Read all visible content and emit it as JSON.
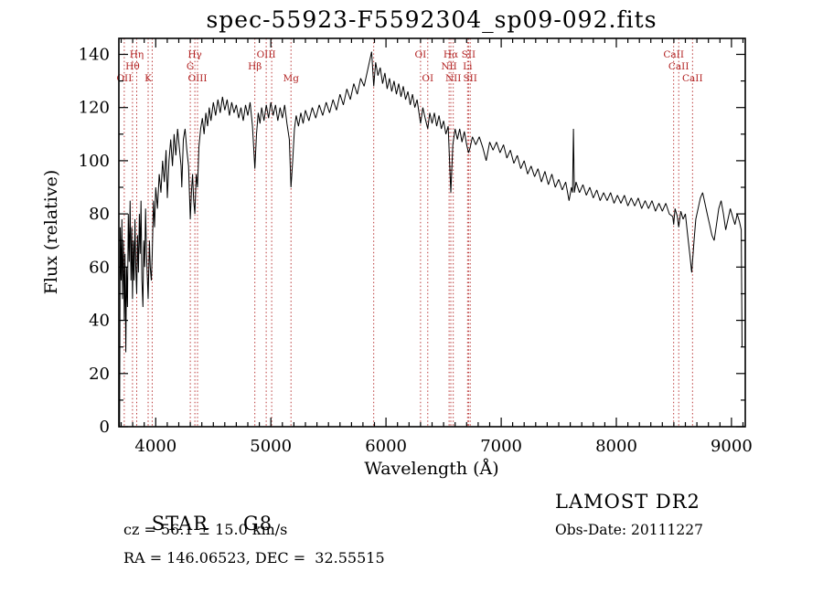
{
  "chart_data": {
    "type": "line",
    "title": "spec-55923-F5592304_sp09-092.fits",
    "xlabel": "Wavelength (Å)",
    "ylabel": "Flux (relative)",
    "xlim": [
      3680,
      9120
    ],
    "ylim": [
      0,
      146
    ],
    "xticks": [
      4000,
      5000,
      6000,
      7000,
      8000,
      9000
    ],
    "yticks": [
      0,
      20,
      40,
      60,
      80,
      100,
      120,
      140
    ],
    "x_minor_step": 100,
    "y_minor_step": 10,
    "grid": false,
    "axis_color": "#000000",
    "marker_color": "#b22222",
    "series": [
      {
        "name": "spectrum",
        "color": "#000000",
        "points": [
          [
            3686,
            0
          ],
          [
            3692,
            75
          ],
          [
            3700,
            55
          ],
          [
            3706,
            78
          ],
          [
            3712,
            48
          ],
          [
            3720,
            70
          ],
          [
            3727,
            40
          ],
          [
            3733,
            65
          ],
          [
            3740,
            28
          ],
          [
            3747,
            60
          ],
          [
            3755,
            45
          ],
          [
            3762,
            80
          ],
          [
            3770,
            62
          ],
          [
            3778,
            85
          ],
          [
            3785,
            55
          ],
          [
            3792,
            75
          ],
          [
            3798,
            48
          ],
          [
            3806,
            70
          ],
          [
            3812,
            55
          ],
          [
            3820,
            78
          ],
          [
            3827,
            60
          ],
          [
            3835,
            50
          ],
          [
            3842,
            72
          ],
          [
            3850,
            58
          ],
          [
            3858,
            80
          ],
          [
            3865,
            65
          ],
          [
            3872,
            85
          ],
          [
            3880,
            55
          ],
          [
            3889,
            45
          ],
          [
            3896,
            70
          ],
          [
            3904,
            60
          ],
          [
            3912,
            82
          ],
          [
            3920,
            65
          ],
          [
            3934,
            48
          ],
          [
            3945,
            70
          ],
          [
            3952,
            60
          ],
          [
            3962,
            55
          ],
          [
            3970,
            65
          ],
          [
            3980,
            85
          ],
          [
            3990,
            75
          ],
          [
            4000,
            90
          ],
          [
            4015,
            82
          ],
          [
            4030,
            95
          ],
          [
            4045,
            88
          ],
          [
            4060,
            100
          ],
          [
            4075,
            92
          ],
          [
            4090,
            104
          ],
          [
            4101,
            86
          ],
          [
            4115,
            100
          ],
          [
            4130,
            108
          ],
          [
            4145,
            98
          ],
          [
            4160,
            110
          ],
          [
            4175,
            102
          ],
          [
            4190,
            112
          ],
          [
            4205,
            105
          ],
          [
            4220,
            98
          ],
          [
            4226,
            90
          ],
          [
            4240,
            108
          ],
          [
            4255,
            112
          ],
          [
            4270,
            104
          ],
          [
            4285,
            98
          ],
          [
            4300,
            78
          ],
          [
            4310,
            88
          ],
          [
            4320,
            95
          ],
          [
            4330,
            85
          ],
          [
            4340,
            80
          ],
          [
            4352,
            95
          ],
          [
            4363,
            90
          ],
          [
            4375,
            105
          ],
          [
            4390,
            112
          ],
          [
            4405,
            116
          ],
          [
            4420,
            110
          ],
          [
            4435,
            118
          ],
          [
            4450,
            113
          ],
          [
            4465,
            120
          ],
          [
            4480,
            115
          ],
          [
            4500,
            122
          ],
          [
            4520,
            117
          ],
          [
            4540,
            123
          ],
          [
            4560,
            118
          ],
          [
            4580,
            124
          ],
          [
            4600,
            119
          ],
          [
            4620,
            123
          ],
          [
            4640,
            117
          ],
          [
            4660,
            122
          ],
          [
            4680,
            118
          ],
          [
            4700,
            121
          ],
          [
            4720,
            116
          ],
          [
            4740,
            120
          ],
          [
            4760,
            115
          ],
          [
            4780,
            121
          ],
          [
            4800,
            117
          ],
          [
            4820,
            122
          ],
          [
            4840,
            113
          ],
          [
            4861,
            97
          ],
          [
            4875,
            110
          ],
          [
            4890,
            118
          ],
          [
            4905,
            114
          ],
          [
            4920,
            120
          ],
          [
            4940,
            115
          ],
          [
            4960,
            121
          ],
          [
            4980,
            116
          ],
          [
            5000,
            122
          ],
          [
            5020,
            117
          ],
          [
            5040,
            121
          ],
          [
            5060,
            115
          ],
          [
            5080,
            120
          ],
          [
            5100,
            116
          ],
          [
            5120,
            121
          ],
          [
            5140,
            114
          ],
          [
            5160,
            108
          ],
          [
            5175,
            90
          ],
          [
            5190,
            100
          ],
          [
            5205,
            112
          ],
          [
            5220,
            117
          ],
          [
            5240,
            113
          ],
          [
            5260,
            118
          ],
          [
            5280,
            114
          ],
          [
            5300,
            119
          ],
          [
            5330,
            115
          ],
          [
            5360,
            120
          ],
          [
            5390,
            116
          ],
          [
            5420,
            121
          ],
          [
            5450,
            117
          ],
          [
            5480,
            122
          ],
          [
            5510,
            118
          ],
          [
            5540,
            123
          ],
          [
            5570,
            119
          ],
          [
            5600,
            125
          ],
          [
            5630,
            121
          ],
          [
            5660,
            127
          ],
          [
            5690,
            123
          ],
          [
            5720,
            129
          ],
          [
            5750,
            125
          ],
          [
            5780,
            131
          ],
          [
            5810,
            128
          ],
          [
            5840,
            134
          ],
          [
            5860,
            138
          ],
          [
            5875,
            141
          ],
          [
            5893,
            128
          ],
          [
            5910,
            137
          ],
          [
            5930,
            132
          ],
          [
            5950,
            135
          ],
          [
            5970,
            129
          ],
          [
            5990,
            133
          ],
          [
            6010,
            127
          ],
          [
            6030,
            131
          ],
          [
            6050,
            126
          ],
          [
            6070,
            130
          ],
          [
            6090,
            125
          ],
          [
            6110,
            129
          ],
          [
            6130,
            124
          ],
          [
            6150,
            128
          ],
          [
            6170,
            123
          ],
          [
            6190,
            126
          ],
          [
            6210,
            121
          ],
          [
            6230,
            125
          ],
          [
            6250,
            120
          ],
          [
            6270,
            123
          ],
          [
            6300,
            114
          ],
          [
            6320,
            120
          ],
          [
            6340,
            116
          ],
          [
            6363,
            112
          ],
          [
            6380,
            118
          ],
          [
            6400,
            114
          ],
          [
            6420,
            118
          ],
          [
            6440,
            113
          ],
          [
            6460,
            117
          ],
          [
            6480,
            112
          ],
          [
            6500,
            115
          ],
          [
            6520,
            110
          ],
          [
            6540,
            113
          ],
          [
            6563,
            88
          ],
          [
            6580,
            106
          ],
          [
            6600,
            112
          ],
          [
            6620,
            108
          ],
          [
            6640,
            112
          ],
          [
            6660,
            107
          ],
          [
            6680,
            111
          ],
          [
            6700,
            106
          ],
          [
            6717,
            103
          ],
          [
            6731,
            105
          ],
          [
            6750,
            109
          ],
          [
            6780,
            106
          ],
          [
            6810,
            109
          ],
          [
            6840,
            105
          ],
          [
            6870,
            100
          ],
          [
            6900,
            107
          ],
          [
            6930,
            104
          ],
          [
            6960,
            107
          ],
          [
            6990,
            103
          ],
          [
            7020,
            106
          ],
          [
            7050,
            101
          ],
          [
            7080,
            104
          ],
          [
            7110,
            99
          ],
          [
            7140,
            102
          ],
          [
            7170,
            97
          ],
          [
            7200,
            100
          ],
          [
            7230,
            95
          ],
          [
            7260,
            98
          ],
          [
            7290,
            94
          ],
          [
            7320,
            97
          ],
          [
            7350,
            92
          ],
          [
            7380,
            96
          ],
          [
            7410,
            91
          ],
          [
            7440,
            95
          ],
          [
            7470,
            90
          ],
          [
            7500,
            93
          ],
          [
            7530,
            89
          ],
          [
            7560,
            92
          ],
          [
            7590,
            85
          ],
          [
            7610,
            90
          ],
          [
            7620,
            88
          ],
          [
            7628,
            112
          ],
          [
            7636,
            88
          ],
          [
            7650,
            92
          ],
          [
            7680,
            88
          ],
          [
            7710,
            91
          ],
          [
            7740,
            87
          ],
          [
            7770,
            90
          ],
          [
            7800,
            86
          ],
          [
            7830,
            89
          ],
          [
            7860,
            85
          ],
          [
            7890,
            88
          ],
          [
            7920,
            85
          ],
          [
            7950,
            88
          ],
          [
            7980,
            84
          ],
          [
            8010,
            87
          ],
          [
            8040,
            84
          ],
          [
            8070,
            87
          ],
          [
            8100,
            83
          ],
          [
            8130,
            86
          ],
          [
            8160,
            83
          ],
          [
            8190,
            86
          ],
          [
            8220,
            82
          ],
          [
            8250,
            85
          ],
          [
            8280,
            82
          ],
          [
            8310,
            85
          ],
          [
            8340,
            81
          ],
          [
            8370,
            84
          ],
          [
            8400,
            81
          ],
          [
            8430,
            84
          ],
          [
            8460,
            80
          ],
          [
            8490,
            79
          ],
          [
            8498,
            76
          ],
          [
            8510,
            82
          ],
          [
            8530,
            79
          ],
          [
            8542,
            75
          ],
          [
            8560,
            81
          ],
          [
            8580,
            78
          ],
          [
            8600,
            80
          ],
          [
            8620,
            72
          ],
          [
            8640,
            64
          ],
          [
            8655,
            58
          ],
          [
            8662,
            62
          ],
          [
            8675,
            70
          ],
          [
            8690,
            78
          ],
          [
            8710,
            82
          ],
          [
            8730,
            86
          ],
          [
            8750,
            88
          ],
          [
            8770,
            84
          ],
          [
            8790,
            80
          ],
          [
            8810,
            76
          ],
          [
            8830,
            72
          ],
          [
            8850,
            70
          ],
          [
            8870,
            76
          ],
          [
            8890,
            82
          ],
          [
            8910,
            85
          ],
          [
            8930,
            80
          ],
          [
            8950,
            74
          ],
          [
            8970,
            78
          ],
          [
            8990,
            82
          ],
          [
            9010,
            79
          ],
          [
            9030,
            76
          ],
          [
            9050,
            80
          ],
          [
            9070,
            77
          ],
          [
            9085,
            74
          ],
          [
            9092,
            30
          ]
        ]
      }
    ],
    "spectral_lines": [
      {
        "label": "OII",
        "wavelength": 3727,
        "row": 3
      },
      {
        "label": "Hθ",
        "wavelength": 3798,
        "row": 2
      },
      {
        "label": "Hη",
        "wavelength": 3835,
        "row": 1
      },
      {
        "label": "K",
        "wavelength": 3934,
        "row": 3
      },
      {
        "label": "",
        "wavelength": 3969,
        "row": 1
      },
      {
        "label": "G",
        "wavelength": 4300,
        "row": 2
      },
      {
        "label": "Hγ",
        "wavelength": 4340,
        "row": 1
      },
      {
        "label": "OIII",
        "wavelength": 4363,
        "row": 3
      },
      {
        "label": "Hβ",
        "wavelength": 4861,
        "row": 2
      },
      {
        "label": "OIII",
        "wavelength": 4959,
        "row": 1
      },
      {
        "label": "",
        "wavelength": 5007,
        "row": 1
      },
      {
        "label": "Mg",
        "wavelength": 5175,
        "row": 3
      },
      {
        "label": "",
        "wavelength": 5893,
        "row": 1
      },
      {
        "label": "OI",
        "wavelength": 6300,
        "row": 1
      },
      {
        "label": "OI",
        "wavelength": 6363,
        "row": 3
      },
      {
        "label": "NII",
        "wavelength": 6548,
        "row": 2
      },
      {
        "label": "Hα",
        "wavelength": 6563,
        "row": 1
      },
      {
        "label": "NII",
        "wavelength": 6584,
        "row": 3
      },
      {
        "label": "Li",
        "wavelength": 6708,
        "row": 2
      },
      {
        "label": "SII",
        "wavelength": 6717,
        "row": 1
      },
      {
        "label": "SII",
        "wavelength": 6731,
        "row": 3
      },
      {
        "label": "CaII",
        "wavelength": 8498,
        "row": 1
      },
      {
        "label": "CaII",
        "wavelength": 8542,
        "row": 2
      },
      {
        "label": "CaII",
        "wavelength": 8662,
        "row": 3
      }
    ]
  },
  "footer": {
    "object_type": "STAR",
    "subclass": "G8",
    "survey": "LAMOST DR2",
    "cz": "cz = 56.1 ± 15.0 km/s",
    "obs_date": "Obs-Date: 20111227",
    "coords": "RA = 146.06523, DEC =  32.55515"
  }
}
